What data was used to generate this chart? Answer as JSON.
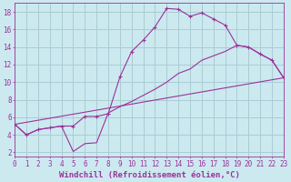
{
  "xlabel": "Windchill (Refroidissement éolien,°C)",
  "bg_color": "#cce9f0",
  "line_color": "#993399",
  "grid_color": "#aaccd4",
  "x_ticks": [
    0,
    1,
    2,
    3,
    4,
    5,
    6,
    7,
    8,
    9,
    10,
    11,
    12,
    13,
    14,
    15,
    16,
    17,
    18,
    19,
    20,
    21,
    22,
    23
  ],
  "y_ticks": [
    2,
    4,
    6,
    8,
    10,
    12,
    14,
    16,
    18
  ],
  "xlim": [
    0,
    23
  ],
  "ylim": [
    1.5,
    19
  ],
  "curve1_x": [
    0,
    1,
    2,
    3,
    4,
    5,
    6,
    7,
    8,
    9,
    10,
    11,
    12,
    13,
    14,
    15,
    16,
    17,
    18,
    19,
    20,
    21,
    22,
    23
  ],
  "curve1_y": [
    5.2,
    4.0,
    4.6,
    4.8,
    5.0,
    5.0,
    6.1,
    6.1,
    6.4,
    10.6,
    13.5,
    14.8,
    16.3,
    18.4,
    18.3,
    17.5,
    17.9,
    17.2,
    16.5,
    14.2,
    14.0,
    13.2,
    12.5,
    10.5
  ],
  "curve2_x": [
    0,
    1,
    2,
    3,
    4,
    5,
    6,
    7,
    8,
    9,
    10,
    11,
    12,
    13,
    14,
    15,
    16,
    17,
    18,
    19,
    20,
    21,
    22,
    23
  ],
  "curve2_y": [
    5.2,
    4.0,
    4.6,
    4.8,
    5.0,
    2.1,
    3.0,
    3.1,
    6.5,
    7.2,
    7.8,
    8.5,
    9.2,
    10.0,
    11.0,
    11.5,
    12.5,
    13.0,
    13.5,
    14.2,
    14.0,
    13.2,
    12.5,
    10.5
  ],
  "curve3_x": [
    0,
    23
  ],
  "curve3_y": [
    5.2,
    10.5
  ],
  "tick_fontsize": 5.5,
  "label_fontsize": 6.5
}
